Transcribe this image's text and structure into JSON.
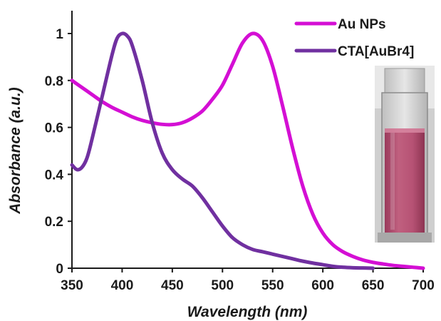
{
  "chart_data": {
    "type": "line",
    "xlabel": "Wavelength (nm)",
    "ylabel": "Absorbance (a.u.)",
    "xlim": [
      350,
      700
    ],
    "ylim": [
      0,
      1.05
    ],
    "x_ticks": [
      350,
      400,
      450,
      500,
      550,
      600,
      650,
      700
    ],
    "y_ticks": [
      0,
      0.2,
      0.4,
      0.6,
      0.8,
      1
    ],
    "y_tick_labels": [
      "0",
      "0.2",
      "0.4",
      "0.6",
      "0.8",
      "1"
    ],
    "grid": false,
    "legend": "top-right",
    "series": [
      {
        "name": "Au NPs",
        "color": "#d40fd4",
        "points": [
          [
            350,
            0.8
          ],
          [
            360,
            0.77
          ],
          [
            370,
            0.74
          ],
          [
            380,
            0.71
          ],
          [
            390,
            0.685
          ],
          [
            400,
            0.665
          ],
          [
            410,
            0.645
          ],
          [
            420,
            0.63
          ],
          [
            430,
            0.62
          ],
          [
            440,
            0.613
          ],
          [
            450,
            0.612
          ],
          [
            460,
            0.62
          ],
          [
            470,
            0.64
          ],
          [
            480,
            0.67
          ],
          [
            490,
            0.72
          ],
          [
            500,
            0.78
          ],
          [
            510,
            0.87
          ],
          [
            520,
            0.96
          ],
          [
            530,
            1.0
          ],
          [
            540,
            0.97
          ],
          [
            550,
            0.86
          ],
          [
            560,
            0.69
          ],
          [
            570,
            0.51
          ],
          [
            580,
            0.35
          ],
          [
            590,
            0.23
          ],
          [
            600,
            0.15
          ],
          [
            610,
            0.1
          ],
          [
            620,
            0.07
          ],
          [
            630,
            0.05
          ],
          [
            640,
            0.035
          ],
          [
            650,
            0.025
          ],
          [
            660,
            0.018
          ],
          [
            670,
            0.012
          ],
          [
            680,
            0.008
          ],
          [
            690,
            0.004
          ],
          [
            700,
            0.0
          ]
        ]
      },
      {
        "name": "CTA[AuBr4]",
        "color": "#7030a0",
        "points": [
          [
            350,
            0.44
          ],
          [
            355,
            0.42
          ],
          [
            360,
            0.43
          ],
          [
            365,
            0.47
          ],
          [
            370,
            0.55
          ],
          [
            380,
            0.73
          ],
          [
            390,
            0.91
          ],
          [
            395,
            0.98
          ],
          [
            400,
            1.0
          ],
          [
            405,
            0.99
          ],
          [
            410,
            0.95
          ],
          [
            420,
            0.8
          ],
          [
            430,
            0.62
          ],
          [
            440,
            0.49
          ],
          [
            450,
            0.42
          ],
          [
            460,
            0.38
          ],
          [
            470,
            0.35
          ],
          [
            480,
            0.3
          ],
          [
            490,
            0.24
          ],
          [
            500,
            0.18
          ],
          [
            510,
            0.13
          ],
          [
            520,
            0.1
          ],
          [
            530,
            0.08
          ],
          [
            540,
            0.07
          ],
          [
            550,
            0.06
          ],
          [
            560,
            0.05
          ],
          [
            570,
            0.04
          ],
          [
            580,
            0.03
          ],
          [
            590,
            0.022
          ],
          [
            600,
            0.015
          ],
          [
            610,
            0.008
          ],
          [
            620,
            0.004
          ],
          [
            630,
            0.002
          ],
          [
            640,
            0.001
          ],
          [
            650,
            0.0
          ]
        ]
      }
    ]
  },
  "inset": {
    "icon": "cuvette-photo-icon",
    "liquid_color": "#b04a6e"
  }
}
